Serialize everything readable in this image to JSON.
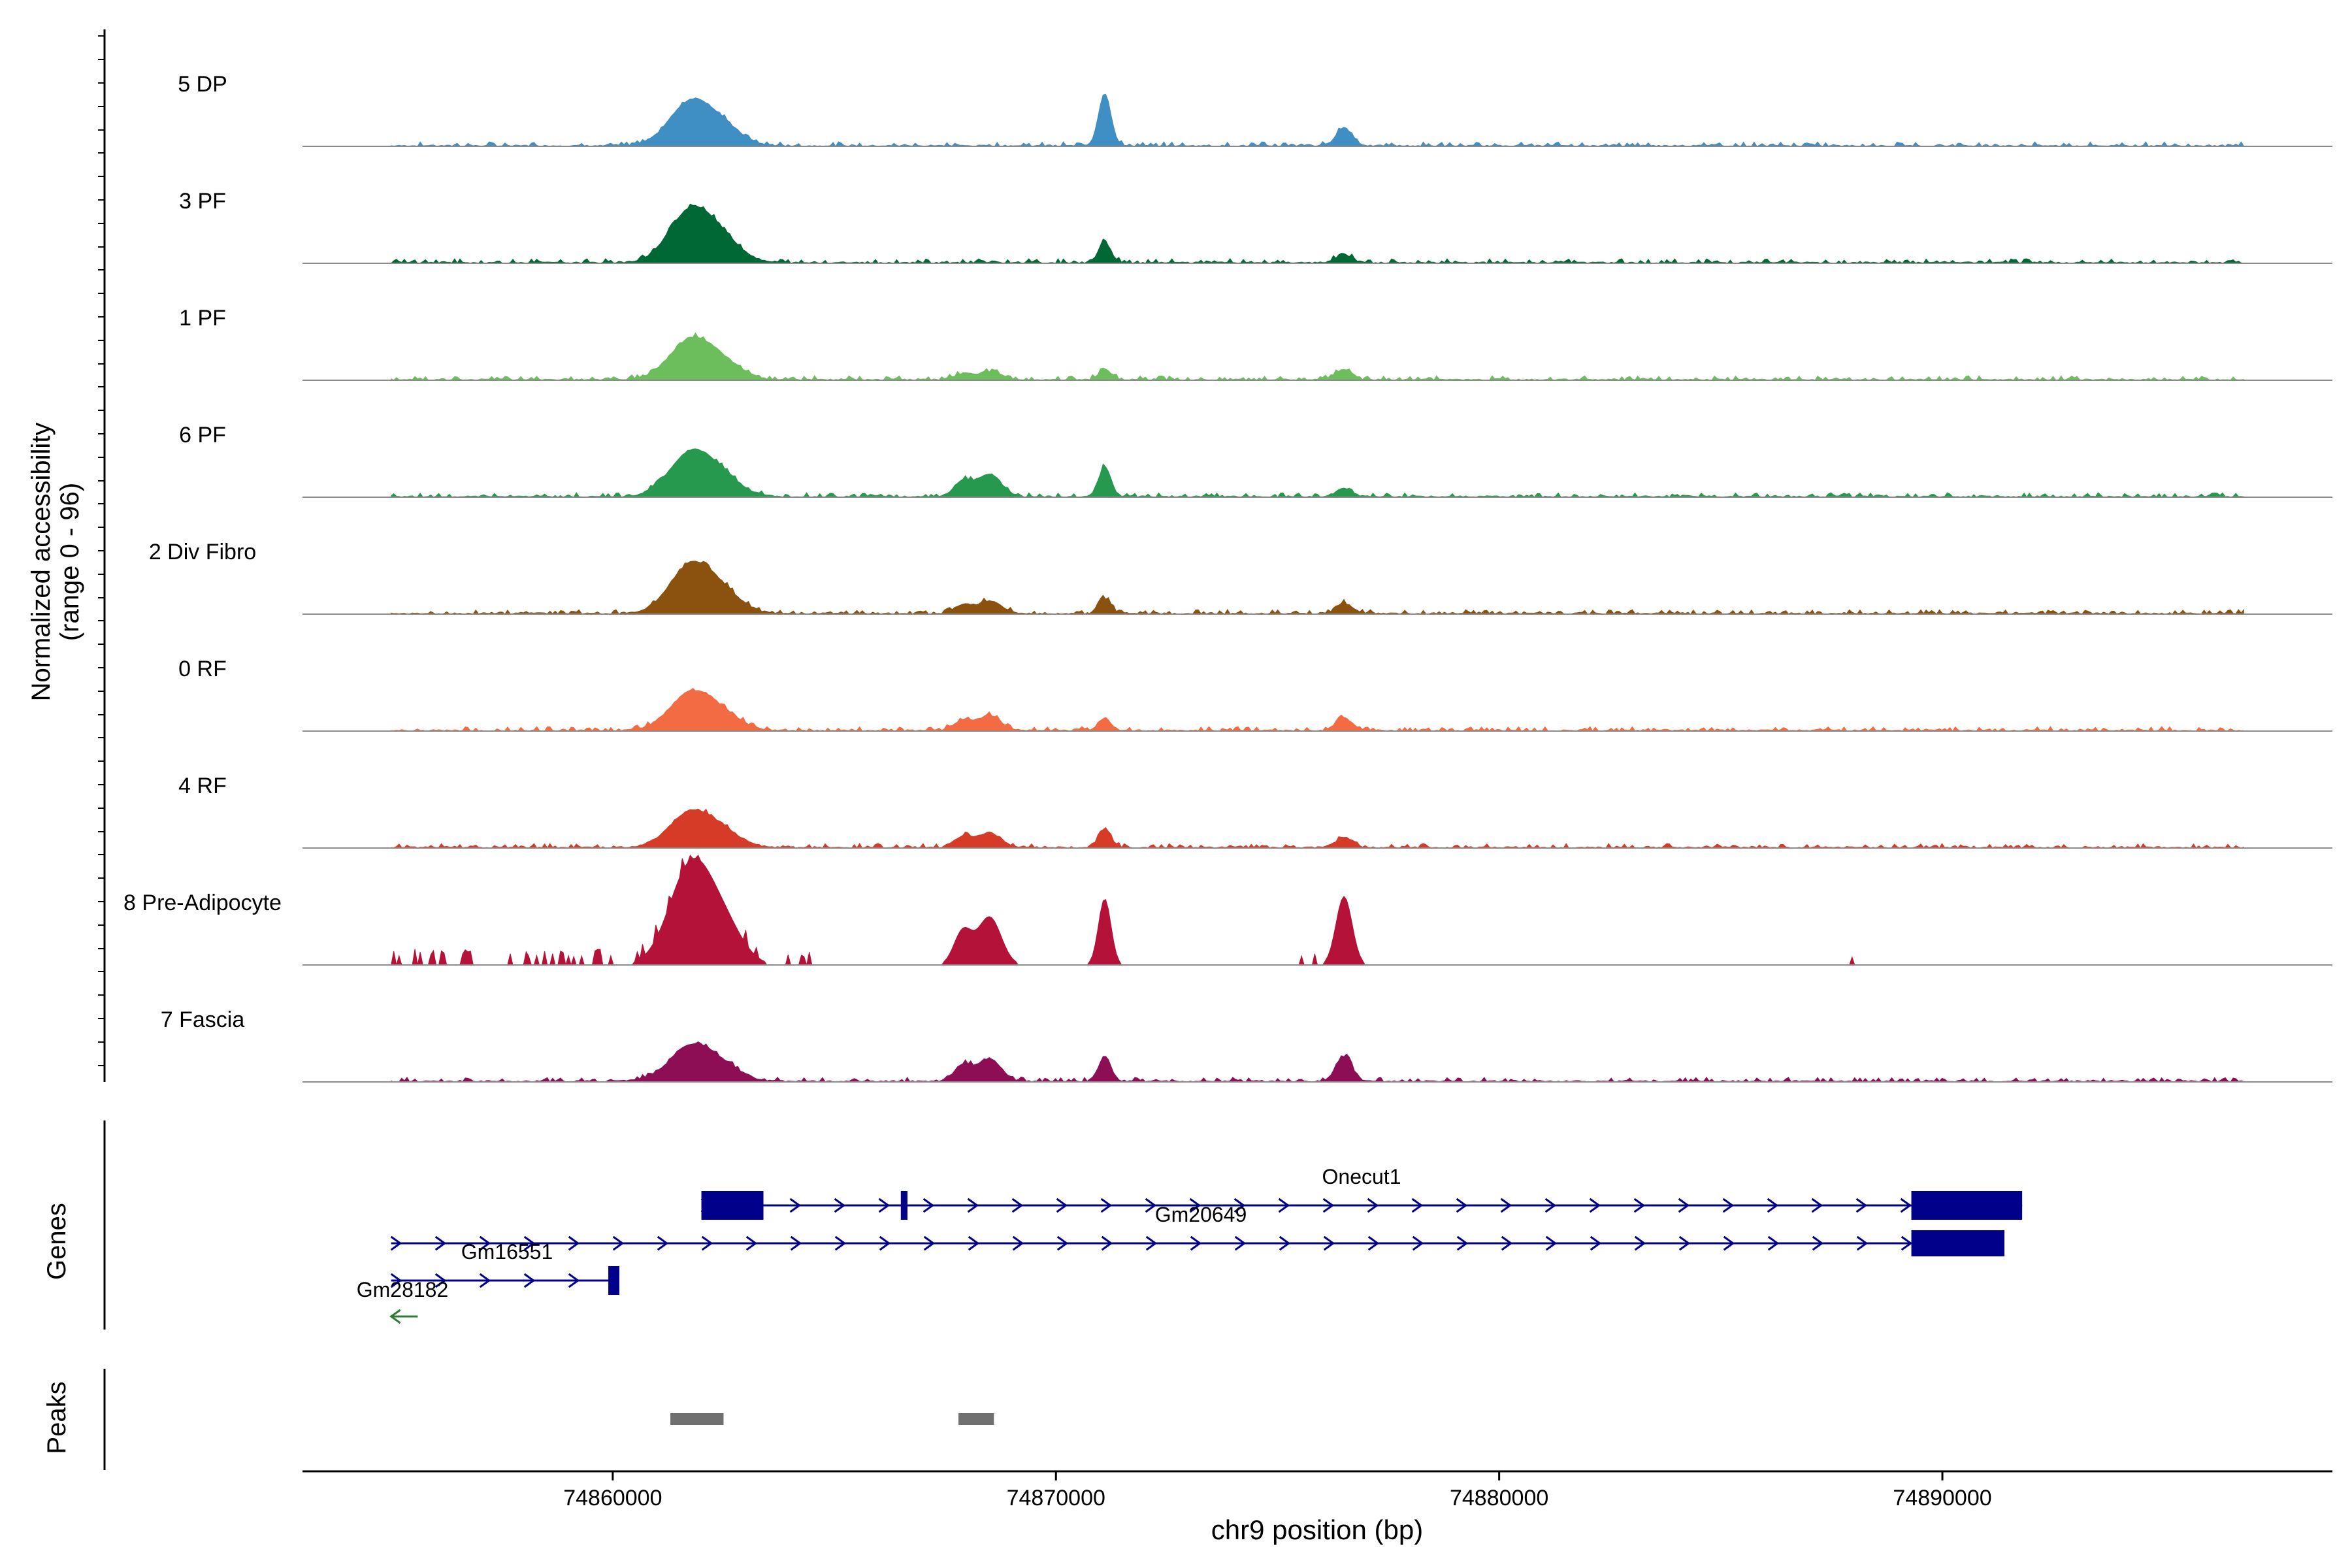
{
  "chart_data": {
    "type": "area",
    "title": "",
    "ylabel_line1": "Normalized accessibility",
    "ylabel_line2": "(range 0 - 96)",
    "y_range": [
      0,
      96
    ],
    "region": {
      "chrom": "chr9",
      "start": 74853000,
      "end": 74898800
    },
    "xlabel": "chr9 position (bp)",
    "x_ticks": [
      74860000,
      74870000,
      74880000,
      74890000
    ],
    "x_tick_labels": [
      "74860000",
      "74870000",
      "74880000",
      "74890000"
    ],
    "peak_positions": [
      74861800,
      74868500,
      74871100,
      74876500
    ],
    "series": [
      {
        "name": "5 DP",
        "color": "#3F8FC4",
        "values": [
          40,
          0,
          46,
          16,
          0
        ]
      },
      {
        "name": "3 PF",
        "color": "#006835",
        "values": [
          48,
          0,
          18,
          7,
          0
        ]
      },
      {
        "name": "1 PF",
        "color": "#6BBE5B",
        "values": [
          36,
          7,
          9,
          9,
          13
        ]
      },
      {
        "name": "6 PF",
        "color": "#27994F",
        "values": [
          40,
          20,
          26,
          7,
          0
        ]
      },
      {
        "name": "2 Div Fibro",
        "color": "#8B520F",
        "values": [
          44,
          11,
          13,
          9,
          0
        ]
      },
      {
        "name": "0 RF",
        "color": "#F26B43",
        "values": [
          34,
          13,
          11,
          11,
          0
        ]
      },
      {
        "name": "4 RF",
        "color": "#D63B27",
        "values": [
          32,
          13,
          16,
          9,
          15
        ]
      },
      {
        "name": "8 Pre-Adipocyte",
        "color": "#B5123A",
        "values": [
          90,
          42,
          58,
          60,
          0
        ]
      },
      {
        "name": "7 Fascia",
        "color": "#8E0E55",
        "values": [
          32,
          20,
          22,
          22,
          9
        ]
      }
    ],
    "genes_label": "Genes",
    "genes": [
      {
        "name": "Onecut1",
        "strand": "+",
        "start": 74862000,
        "end": 74891800
      },
      {
        "name": "Gm20649",
        "strand": "+",
        "start": 74855000,
        "end": 74891400
      },
      {
        "name": "Gm16551",
        "strand": "+",
        "start": 74855000,
        "end": 74860100
      },
      {
        "name": "Gm28182",
        "strand": "-",
        "start": 74855000,
        "end": 74855600
      }
    ],
    "peaks_label": "Peaks",
    "peaks": [
      {
        "start": 74861300,
        "end": 74862500
      },
      {
        "start": 74867800,
        "end": 74868600
      }
    ]
  }
}
